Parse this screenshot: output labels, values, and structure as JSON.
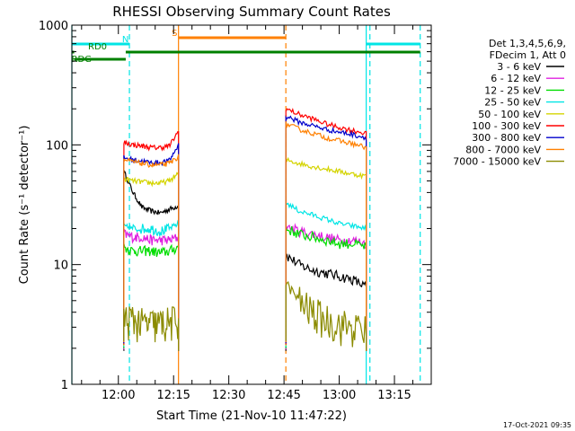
{
  "chart_data": {
    "type": "line",
    "title": "RHESSI Observing Summary Count Rates",
    "xlabel": "Start Time (21-Nov-10 11:47:22)",
    "ylabel": "Count Rate (s⁻¹ detector⁻¹)",
    "yscale": "log",
    "ylim": [
      1,
      1000
    ],
    "xlim": [
      "11:47:22",
      "13:25:00"
    ],
    "xticks": [
      "12:00",
      "12:15",
      "12:30",
      "12:45",
      "13:00",
      "13:15"
    ],
    "yticks": [
      1,
      10,
      100,
      1000
    ],
    "legend_header": [
      "Det 1,3,4,5,6,9,",
      "FDecim 1, Att 0"
    ],
    "legend_position": "right",
    "footer_date": "17-Oct-2021 09:35",
    "segments": [
      [
        "12:01:30",
        "12:16:20"
      ],
      [
        "12:45:30",
        "13:07:20"
      ]
    ],
    "series": [
      {
        "name": "3 - 6 keV",
        "color": "#000000",
        "seg1": [
          60,
          40,
          30,
          28,
          27,
          29,
          31
        ],
        "seg2": [
          12,
          10,
          9,
          8.5,
          8,
          7.5,
          6.5
        ]
      },
      {
        "name": "6 - 12 keV",
        "color": "#e020e0",
        "seg1": [
          18,
          17,
          17,
          16,
          16,
          16,
          17
        ],
        "seg2": [
          21,
          19,
          18,
          17,
          16,
          16,
          15
        ]
      },
      {
        "name": "12 - 25 keV",
        "color": "#00dd00",
        "seg1": [
          14,
          13,
          13,
          13,
          12.5,
          13,
          14
        ],
        "seg2": [
          20,
          18,
          17,
          16,
          15,
          15,
          14
        ]
      },
      {
        "name": "25 - 50 keV",
        "color": "#00e5e5",
        "seg1": [
          21,
          20,
          20,
          20,
          19,
          20,
          22
        ],
        "seg2": [
          33,
          28,
          26,
          24,
          22,
          21,
          20
        ]
      },
      {
        "name": "50 - 100 keV",
        "color": "#d4d400",
        "seg1": [
          52,
          50,
          49,
          48,
          48,
          50,
          58
        ],
        "seg2": [
          75,
          70,
          66,
          63,
          60,
          57,
          55
        ]
      },
      {
        "name": "100 - 300 keV",
        "color": "#ff0000",
        "seg1": [
          105,
          100,
          98,
          95,
          95,
          98,
          130
        ],
        "seg2": [
          200,
          180,
          165,
          150,
          140,
          132,
          125
        ]
      },
      {
        "name": "300 - 800 keV",
        "color": "#0000cc",
        "seg1": [
          78,
          75,
          73,
          71,
          71,
          74,
          100
        ],
        "seg2": [
          175,
          155,
          145,
          135,
          128,
          122,
          115
        ]
      },
      {
        "name": "800 - 7000 keV",
        "color": "#ff8000",
        "seg1": [
          75,
          72,
          70,
          68,
          68,
          70,
          80
        ],
        "seg2": [
          150,
          135,
          125,
          115,
          108,
          102,
          95
        ]
      },
      {
        "name": "7000 - 15000 keV",
        "color": "#8b8b00",
        "seg1": [
          3.5,
          3.5,
          3.2,
          3.2,
          3.2,
          3.3,
          3.5
        ],
        "seg2": [
          7,
          5,
          4,
          3.5,
          3.2,
          3,
          2.8
        ]
      }
    ],
    "flag_bars": [
      {
        "label": "N",
        "color": "#00e5e5",
        "level": "top",
        "spans": [
          [
            "11:47:22",
            "12:03:00"
          ],
          [
            "13:07:20",
            "13:22:00"
          ]
        ]
      },
      {
        "label": "S",
        "color": "#ff8000",
        "level": "top",
        "spans": [
          [
            "12:16:20",
            "12:45:30"
          ]
        ]
      },
      {
        "label": "RD0",
        "color": "#008000",
        "level": "middle",
        "spans": [
          [
            "11:47:22",
            "11:48:00"
          ],
          [
            "12:02:00",
            "13:22:00"
          ]
        ]
      },
      {
        "label": "RDG",
        "color": "#008000",
        "level": "low",
        "spans": [
          [
            "11:48:00",
            "12:02:00"
          ]
        ]
      }
    ],
    "vertical_markers": [
      {
        "time": "11:47:22",
        "color": "#00e5e5",
        "style": "solid"
      },
      {
        "time": "12:03:00",
        "color": "#00e5e5",
        "style": "dashed"
      },
      {
        "time": "12:16:20",
        "color": "#ff8000",
        "style": "solid"
      },
      {
        "time": "12:45:30",
        "color": "#ff8000",
        "style": "dashed"
      },
      {
        "time": "13:07:20",
        "color": "#00e5e5",
        "style": "solid"
      },
      {
        "time": "13:08:20",
        "color": "#00e5e5",
        "style": "dashed"
      },
      {
        "time": "13:22:00",
        "color": "#00e5e5",
        "style": "dashed"
      }
    ]
  }
}
